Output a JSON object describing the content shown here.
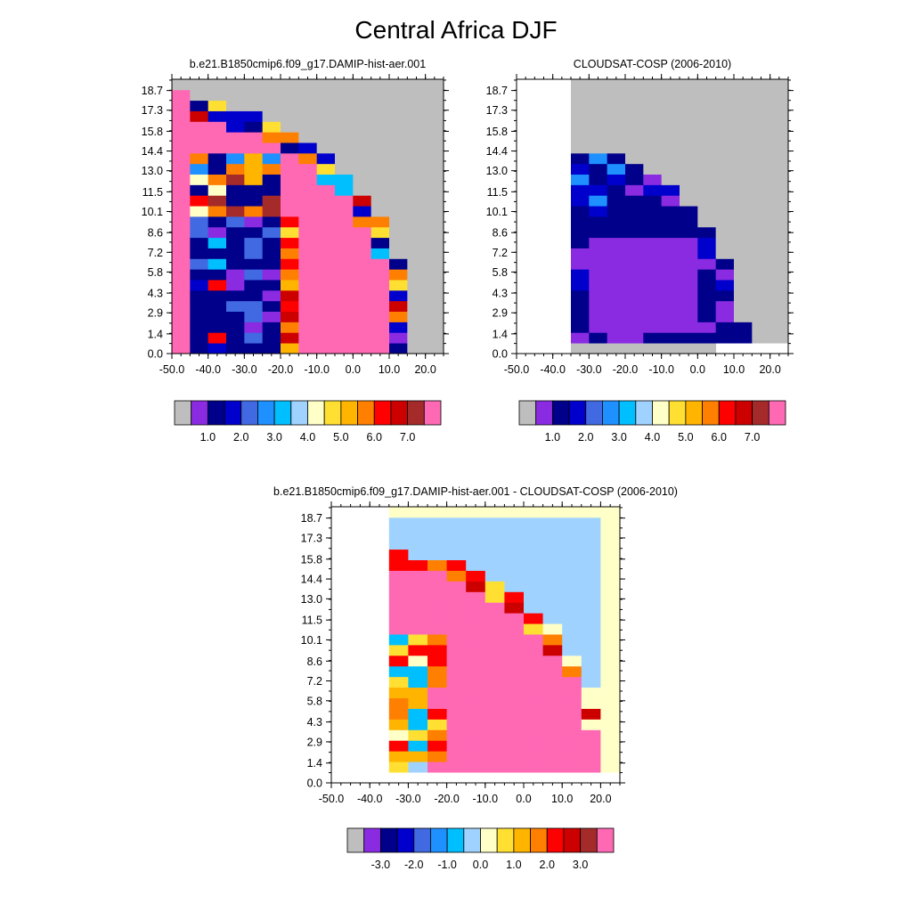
{
  "title": "Central Africa DJF",
  "colors": {
    "missing": "#bebebe",
    "palette": [
      "#bebebe",
      "#8a2be2",
      "#00008b",
      "#0000cd",
      "#4169e1",
      "#1e90ff",
      "#00bfff",
      "#a0d2ff",
      "#ffffc8",
      "#ffe032",
      "#ffb400",
      "#ff7f00",
      "#ff0000",
      "#cd0000",
      "#a52a2a",
      "#ff69b4"
    ]
  },
  "chart_data": [
    {
      "type": "heatmap",
      "title": "b.e21.B1850cmip6.f09_g17.DAMIP-hist-aer.001",
      "xticks": [
        "-50.0",
        "-40.0",
        "-30.0",
        "-20.0",
        "-10.0",
        "0.0",
        "10.0",
        "20.0"
      ],
      "yticks": [
        "0.0",
        "1.4",
        "2.9",
        "4.3",
        "5.8",
        "7.2",
        "8.6",
        "10.1",
        "11.5",
        "13.0",
        "14.4",
        "15.8",
        "17.3",
        "18.7"
      ],
      "xlim": [
        -50,
        25
      ],
      "ylim": [
        0,
        19.5
      ],
      "colorbar_labels": [
        "1.0",
        "2.0",
        "3.0",
        "4.0",
        "5.0",
        "6.0",
        "7.0"
      ],
      "grid": {
        "x0": -50,
        "dx": 5,
        "y0": 0,
        "dy": 0.75,
        "rows": [
          "GGGGGGGGGGGGGGGGGGGGGGGG",
          "GGGGGGGGGGGGGGGGGGGGGGGG",
          "GGGGGGGGGGGGGGGGGGGGGGGG",
          "GGGGGGGGGGGGGGGGGGGGGGGG",
          "GGGGGGGGGGGGGGGGGGGGGGGG",
          "GGGGGGGGGGGGGGGGGGGGGGGG",
          "PPGGGGGGGGGGGGGGGGGGGGGG",
          "PPPPPGGGGGGGGGGGGGGGGGGG",
          "PPPPPPPPPGGGGGGGGGGGGGGG",
          "PPPPPPPPPPPGGGGGGGGGGGGG",
          "PPPPPPPPPPPPPGGGGGGGGGGG",
          "PPPPPPPPPPPPPPPGGGGGGGGG",
          "PPPPPPPPPPPPPPPPPGGGGGGG",
          "PPPPPPPPPPPPPPPPPPGGGGGG",
          "PPPPPPPPPPPPPPPPPPPGGGGG",
          "PPPPPPPPPPPPPPPPPPPPGGGG",
          "PPPPPPPPPPPPPPPPPPPPPGGG",
          "PPPPPPPPPPPPPPPPPPPPPPGG",
          "PPPPPPPPPPPPPPPPPPPPPPPG",
          "PPPPPPPPPPPPPPPPPPPPPPPG",
          "GGGGGGGGGGGGGGGGGGGGGGGG",
          "GGGGGGGGGGGGGGGGGGGGGGGG",
          "GGGGGGGGGGGGGGGGGGGGGGGG",
          "GGGGGGGGGGGGGGGGGGGGGGGG",
          "GGGGGGGGGGGGGGGGGGGGGGGG",
          "GGGGGGGGGGGGGGGGGGGGGGGG"
        ]
      }
    },
    {
      "type": "heatmap",
      "title": "CLOUDSAT-COSP (2006-2010)",
      "xticks": [
        "-50.0",
        "-40.0",
        "-30.0",
        "-20.0",
        "-10.0",
        "0.0",
        "10.0",
        "20.0"
      ],
      "yticks": [
        "0.0",
        "1.4",
        "2.9",
        "4.3",
        "5.8",
        "7.2",
        "8.6",
        "10.1",
        "11.5",
        "13.0",
        "14.4",
        "15.8",
        "17.3",
        "18.7"
      ],
      "xlim": [
        -50,
        25
      ],
      "ylim": [
        0,
        19.5
      ],
      "colorbar_labels": [
        "1.0",
        "2.0",
        "3.0",
        "4.0",
        "5.0",
        "6.0",
        "7.0"
      ]
    },
    {
      "type": "heatmap",
      "title": "b.e21.B1850cmip6.f09_g17.DAMIP-hist-aer.001 - CLOUDSAT-COSP (2006-2010)",
      "xticks": [
        "-50.0",
        "-40.0",
        "-30.0",
        "-20.0",
        "-10.0",
        "0.0",
        "10.0",
        "20.0"
      ],
      "yticks": [
        "0.0",
        "1.4",
        "2.9",
        "4.3",
        "5.8",
        "7.2",
        "8.6",
        "10.1",
        "11.5",
        "13.0",
        "14.4",
        "15.8",
        "17.3",
        "18.7"
      ],
      "xlim": [
        -50,
        25
      ],
      "ylim": [
        0,
        19.5
      ],
      "colorbar_labels": [
        "-3.0",
        "-2.0",
        "-1.0",
        "0.0",
        "1.0",
        "2.0",
        "3.0"
      ]
    }
  ]
}
